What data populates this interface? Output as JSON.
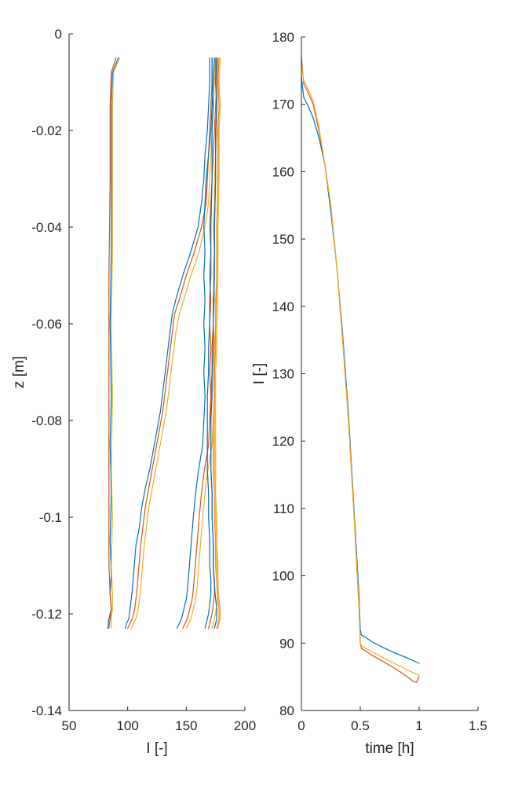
{
  "chart_data": [
    {
      "type": "line",
      "title": "",
      "xlabel": "I [-]",
      "ylabel": "z [m]",
      "xlim": [
        50,
        200
      ],
      "ylim": [
        -0.14,
        0
      ],
      "xticks": [
        50,
        100,
        150,
        200
      ],
      "xtick_labels": [
        "50",
        "100",
        "150",
        "200"
      ],
      "yticks": [
        -0.14,
        -0.12,
        -0.1,
        -0.08,
        -0.06,
        -0.04,
        -0.02,
        0
      ],
      "ytick_labels": [
        "-0.14",
        "-0.12",
        "-0.1",
        "-0.08",
        "-0.06",
        "-0.04",
        "-0.02",
        "0"
      ],
      "grid": false,
      "legend": "none",
      "colors": [
        "#0072BD",
        "#D95319",
        "#EDB120",
        "#F28522"
      ],
      "series": [
        {
          "color": "#0072BD",
          "x": [
            92,
            87,
            86,
            86,
            86,
            85,
            86,
            85,
            86,
            85,
            86,
            85,
            86,
            84,
            83
          ],
          "y": [
            -0.005,
            -0.008,
            -0.015,
            -0.03,
            -0.045,
            -0.06,
            -0.075,
            -0.085,
            -0.095,
            -0.105,
            -0.112,
            -0.116,
            -0.119,
            -0.121,
            -0.123
          ]
        },
        {
          "color": "#D95319",
          "x": [
            90,
            86,
            85,
            85,
            84,
            84,
            84,
            84,
            84,
            84,
            85,
            86,
            85,
            84
          ],
          "y": [
            -0.005,
            -0.008,
            -0.015,
            -0.03,
            -0.05,
            -0.065,
            -0.08,
            -0.09,
            -0.1,
            -0.11,
            -0.116,
            -0.119,
            -0.121,
            -0.123
          ]
        },
        {
          "color": "#EDB120",
          "x": [
            93,
            88,
            87,
            87,
            87,
            86,
            87,
            86,
            87,
            86,
            87,
            87,
            86,
            86
          ],
          "y": [
            -0.005,
            -0.008,
            -0.015,
            -0.03,
            -0.045,
            -0.06,
            -0.075,
            -0.09,
            -0.1,
            -0.11,
            -0.116,
            -0.119,
            -0.121,
            -0.123
          ]
        },
        {
          "color": "#0072BD",
          "x": [
            170,
            170,
            169,
            168,
            166,
            165,
            163,
            160,
            154,
            147,
            141,
            138,
            136,
            134,
            132,
            130,
            128,
            125,
            122,
            119,
            115,
            112,
            110,
            107,
            106,
            105,
            104,
            103,
            102,
            101,
            99,
            98
          ],
          "y": [
            -0.005,
            -0.01,
            -0.015,
            -0.02,
            -0.025,
            -0.03,
            -0.035,
            -0.04,
            -0.045,
            -0.05,
            -0.055,
            -0.058,
            -0.062,
            -0.066,
            -0.07,
            -0.074,
            -0.078,
            -0.082,
            -0.086,
            -0.09,
            -0.094,
            -0.098,
            -0.102,
            -0.106,
            -0.109,
            -0.112,
            -0.115,
            -0.117,
            -0.119,
            -0.121,
            -0.122,
            -0.123
          ]
        },
        {
          "color": "#D95319",
          "x": [
            172,
            172,
            171,
            170,
            169,
            168,
            167,
            163,
            157,
            150,
            144,
            140,
            138,
            136,
            134,
            132,
            130,
            127,
            124,
            121,
            118,
            115,
            113,
            111,
            110,
            109,
            108,
            107,
            106,
            104,
            102,
            100
          ],
          "y": [
            -0.005,
            -0.01,
            -0.015,
            -0.02,
            -0.025,
            -0.03,
            -0.035,
            -0.04,
            -0.045,
            -0.05,
            -0.055,
            -0.058,
            -0.062,
            -0.066,
            -0.07,
            -0.074,
            -0.078,
            -0.082,
            -0.086,
            -0.09,
            -0.094,
            -0.098,
            -0.102,
            -0.106,
            -0.109,
            -0.112,
            -0.115,
            -0.117,
            -0.119,
            -0.121,
            -0.122,
            -0.123
          ]
        },
        {
          "color": "#EDB120",
          "x": [
            174,
            174,
            173,
            172,
            171,
            170,
            169,
            166,
            161,
            154,
            148,
            144,
            141,
            139,
            137,
            135,
            133,
            130,
            127,
            124,
            121,
            118,
            116,
            114,
            113,
            112,
            111,
            110,
            109,
            107,
            105,
            103
          ],
          "y": [
            -0.005,
            -0.01,
            -0.015,
            -0.02,
            -0.025,
            -0.03,
            -0.035,
            -0.04,
            -0.045,
            -0.05,
            -0.055,
            -0.058,
            -0.062,
            -0.066,
            -0.07,
            -0.074,
            -0.078,
            -0.082,
            -0.086,
            -0.09,
            -0.094,
            -0.098,
            -0.102,
            -0.106,
            -0.109,
            -0.112,
            -0.115,
            -0.117,
            -0.119,
            -0.121,
            -0.122,
            -0.123
          ]
        },
        {
          "color": "#0072BD",
          "x": [
            174,
            173,
            172,
            171,
            169,
            167,
            166,
            165,
            166,
            165,
            166,
            165,
            166,
            165,
            166,
            165,
            164,
            162,
            160,
            158,
            156,
            155,
            154,
            153,
            152,
            151,
            150,
            148,
            146,
            144,
            142
          ],
          "y": [
            -0.005,
            -0.01,
            -0.015,
            -0.02,
            -0.025,
            -0.03,
            -0.035,
            -0.04,
            -0.045,
            -0.05,
            -0.055,
            -0.06,
            -0.065,
            -0.07,
            -0.075,
            -0.08,
            -0.085,
            -0.088,
            -0.091,
            -0.095,
            -0.1,
            -0.103,
            -0.106,
            -0.109,
            -0.112,
            -0.115,
            -0.117,
            -0.119,
            -0.121,
            -0.122,
            -0.123
          ]
        },
        {
          "color": "#D95319",
          "x": [
            176,
            176,
            175,
            174,
            173,
            172,
            171,
            170,
            171,
            170,
            171,
            170,
            171,
            170,
            171,
            170,
            169,
            167,
            165,
            163,
            161,
            160,
            159,
            158,
            157,
            156,
            155,
            153,
            151,
            149,
            147
          ],
          "y": [
            -0.005,
            -0.01,
            -0.015,
            -0.02,
            -0.025,
            -0.03,
            -0.035,
            -0.04,
            -0.045,
            -0.05,
            -0.055,
            -0.06,
            -0.065,
            -0.07,
            -0.075,
            -0.08,
            -0.085,
            -0.088,
            -0.091,
            -0.095,
            -0.1,
            -0.103,
            -0.106,
            -0.109,
            -0.112,
            -0.115,
            -0.117,
            -0.119,
            -0.121,
            -0.122,
            -0.123
          ]
        },
        {
          "color": "#EDB120",
          "x": [
            177,
            177,
            176,
            176,
            175,
            174,
            174,
            173,
            174,
            173,
            174,
            173,
            174,
            173,
            174,
            173,
            172,
            170,
            168,
            166,
            164,
            163,
            162,
            161,
            160,
            159,
            158,
            156,
            154,
            152,
            150
          ],
          "y": [
            -0.005,
            -0.01,
            -0.015,
            -0.02,
            -0.025,
            -0.03,
            -0.035,
            -0.04,
            -0.045,
            -0.05,
            -0.055,
            -0.06,
            -0.065,
            -0.07,
            -0.075,
            -0.08,
            -0.085,
            -0.088,
            -0.091,
            -0.095,
            -0.1,
            -0.103,
            -0.106,
            -0.109,
            -0.112,
            -0.115,
            -0.117,
            -0.119,
            -0.121,
            -0.122,
            -0.123
          ]
        },
        {
          "color": "#0072BD",
          "x": [
            172,
            172,
            173,
            172,
            172,
            171,
            171,
            170,
            170,
            169,
            169,
            168,
            168,
            168,
            168,
            169,
            169,
            170,
            170,
            171,
            171,
            170,
            169,
            168,
            167,
            166
          ],
          "y": [
            -0.005,
            -0.01,
            -0.015,
            -0.02,
            -0.03,
            -0.04,
            -0.05,
            -0.055,
            -0.06,
            -0.065,
            -0.07,
            -0.075,
            -0.08,
            -0.085,
            -0.09,
            -0.095,
            -0.1,
            -0.105,
            -0.11,
            -0.113,
            -0.116,
            -0.118,
            -0.12,
            -0.121,
            -0.122,
            -0.123
          ]
        },
        {
          "color": "#D95319",
          "x": [
            175,
            175,
            176,
            175,
            175,
            174,
            174,
            173,
            173,
            172,
            172,
            171,
            171,
            171,
            171,
            172,
            172,
            173,
            173,
            174,
            174,
            173,
            172,
            171,
            170,
            169
          ],
          "y": [
            -0.005,
            -0.01,
            -0.015,
            -0.02,
            -0.03,
            -0.04,
            -0.05,
            -0.055,
            -0.06,
            -0.065,
            -0.07,
            -0.075,
            -0.08,
            -0.085,
            -0.09,
            -0.095,
            -0.1,
            -0.105,
            -0.11,
            -0.113,
            -0.116,
            -0.118,
            -0.12,
            -0.121,
            -0.122,
            -0.123
          ]
        },
        {
          "color": "#EDB120",
          "x": [
            177,
            177,
            178,
            177,
            177,
            176,
            176,
            175,
            175,
            174,
            174,
            174,
            174,
            174,
            174,
            175,
            175,
            176,
            176,
            177,
            177,
            176,
            175,
            174,
            173,
            172
          ],
          "y": [
            -0.005,
            -0.01,
            -0.015,
            -0.02,
            -0.03,
            -0.04,
            -0.05,
            -0.055,
            -0.06,
            -0.065,
            -0.07,
            -0.075,
            -0.08,
            -0.085,
            -0.09,
            -0.095,
            -0.1,
            -0.105,
            -0.11,
            -0.113,
            -0.116,
            -0.118,
            -0.12,
            -0.121,
            -0.122,
            -0.123
          ]
        },
        {
          "color": "#0072BD",
          "x": [
            176,
            175,
            176,
            175,
            175,
            174,
            174,
            173,
            173,
            172,
            172,
            171,
            171,
            171,
            172,
            172,
            173,
            173,
            174,
            175,
            176,
            176,
            175,
            174
          ],
          "y": [
            -0.005,
            -0.01,
            -0.015,
            -0.02,
            -0.03,
            -0.04,
            -0.05,
            -0.06,
            -0.065,
            -0.07,
            -0.075,
            -0.08,
            -0.085,
            -0.09,
            -0.095,
            -0.1,
            -0.105,
            -0.11,
            -0.114,
            -0.117,
            -0.119,
            -0.121,
            -0.122,
            -0.123
          ]
        },
        {
          "color": "#F28522",
          "x": [
            178,
            177,
            178,
            177,
            177,
            176,
            176,
            175,
            175,
            174,
            174,
            173,
            173,
            173,
            174,
            174,
            175,
            175,
            176,
            177,
            178,
            178,
            177,
            176
          ],
          "y": [
            -0.005,
            -0.01,
            -0.015,
            -0.02,
            -0.03,
            -0.04,
            -0.05,
            -0.06,
            -0.065,
            -0.07,
            -0.075,
            -0.08,
            -0.085,
            -0.09,
            -0.095,
            -0.1,
            -0.105,
            -0.11,
            -0.114,
            -0.117,
            -0.119,
            -0.121,
            -0.122,
            -0.123
          ]
        },
        {
          "color": "#EDB120",
          "x": [
            179,
            178,
            179,
            178,
            178,
            177,
            177,
            176,
            176,
            175,
            175,
            175,
            175,
            175,
            175,
            176,
            176,
            177,
            177,
            178,
            179,
            179,
            178,
            177
          ],
          "y": [
            -0.005,
            -0.01,
            -0.015,
            -0.02,
            -0.03,
            -0.04,
            -0.05,
            -0.06,
            -0.065,
            -0.07,
            -0.075,
            -0.08,
            -0.085,
            -0.09,
            -0.095,
            -0.1,
            -0.105,
            -0.11,
            -0.114,
            -0.117,
            -0.119,
            -0.121,
            -0.122,
            -0.123
          ]
        }
      ]
    },
    {
      "type": "line",
      "title": "",
      "xlabel": "time [h]",
      "ylabel": "I [-]",
      "xlim": [
        0,
        1.5
      ],
      "ylim": [
        80,
        180
      ],
      "xticks": [
        0,
        0.5,
        1,
        1.5
      ],
      "xtick_labels": [
        "0",
        "0.5",
        "1",
        "1.5"
      ],
      "yticks": [
        80,
        90,
        100,
        110,
        120,
        130,
        140,
        150,
        160,
        170,
        180
      ],
      "ytick_labels": [
        "80",
        "90",
        "100",
        "110",
        "120",
        "130",
        "140",
        "150",
        "160",
        "170",
        "180"
      ],
      "grid": false,
      "legend": "none",
      "colors": [
        "#0072BD",
        "#D95319",
        "#EDB120"
      ],
      "series": [
        {
          "color": "#0072BD",
          "x": [
            0,
            0.02,
            0.05,
            0.1,
            0.15,
            0.2,
            0.25,
            0.3,
            0.35,
            0.4,
            0.45,
            0.49,
            0.5,
            0.51,
            0.55,
            0.6,
            0.7,
            0.8,
            0.9,
            1.0
          ],
          "y": [
            174,
            171,
            170,
            168,
            165,
            161,
            154,
            146,
            136,
            124,
            109,
            97,
            92,
            91.2,
            90.8,
            90.2,
            89.3,
            88.5,
            87.8,
            87
          ]
        },
        {
          "color": "#D95319",
          "x": [
            0,
            0.02,
            0.05,
            0.1,
            0.15,
            0.2,
            0.25,
            0.3,
            0.35,
            0.4,
            0.45,
            0.49,
            0.5,
            0.51,
            0.55,
            0.6,
            0.7,
            0.8,
            0.9,
            0.95,
            0.98,
            1.0
          ],
          "y": [
            177,
            173,
            172,
            170,
            166,
            161,
            155,
            146,
            135,
            123,
            108,
            95,
            90,
            89.2,
            88.8,
            88.2,
            87.2,
            86.2,
            85,
            84.3,
            84.2,
            85
          ]
        },
        {
          "color": "#EDB120",
          "x": [
            0,
            0.02,
            0.05,
            0.1,
            0.15,
            0.2,
            0.25,
            0.3,
            0.35,
            0.4,
            0.45,
            0.49,
            0.5,
            0.51,
            0.55,
            0.6,
            0.7,
            0.8,
            0.9,
            1.0
          ],
          "y": [
            176,
            173.5,
            172.5,
            170.5,
            166.5,
            161,
            155,
            146,
            135,
            123,
            108,
            95.5,
            90,
            89.6,
            89.2,
            88.7,
            87.8,
            86.9,
            86,
            85.2
          ]
        }
      ]
    }
  ]
}
